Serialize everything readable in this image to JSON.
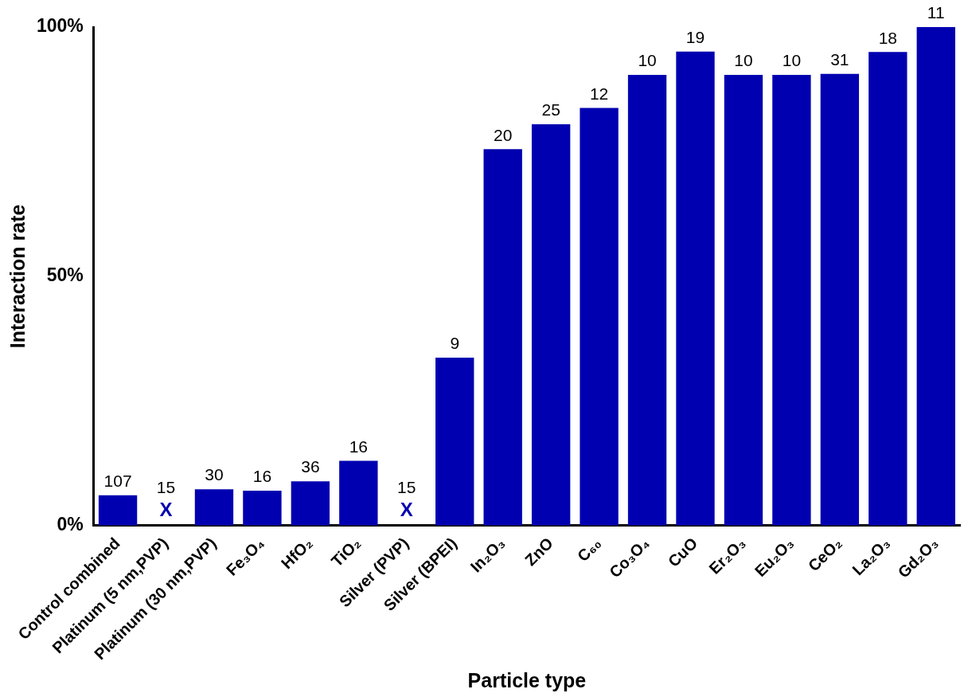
{
  "chart_data": {
    "type": "bar",
    "xlabel": "Particle type",
    "ylabel": "Interaction rate",
    "categories": [
      "Control combined",
      "Platinum (5 nm,PVP)",
      "Platinum (30 nm,PVP)",
      "Fe₃O₄",
      "HfO₂",
      "TiO₂",
      "Silver (PVP)",
      "Silver (BPEI)",
      "In₂O₃",
      "ZnO",
      "C₆₀",
      "Co₃O₄",
      "CuO",
      "Er₂O₃",
      "Eu₂O₃",
      "CeO₂",
      "La₂O₃",
      "Gd₂O₃"
    ],
    "values": [
      6.1,
      0,
      7.3,
      7,
      8.9,
      13,
      0,
      33.7,
      75.5,
      80.5,
      83.8,
      90.4,
      95.1,
      90.4,
      90.4,
      90.6,
      95,
      100
    ],
    "color": "#0000b0",
    "ylim": [
      0,
      100
    ],
    "yticks": [
      {
        "value": 0,
        "label": "0%"
      },
      {
        "value": 50,
        "label": "50%"
      },
      {
        "value": 100,
        "label": "100%"
      }
    ],
    "annotations": [
      {
        "text": "107",
        "x": "Control combined",
        "y": 6.1
      },
      {
        "text": "X",
        "x": "Platinum (5 nm,PVP)",
        "y": 0
      },
      {
        "text": "15",
        "x": "Platinum (5 nm,PVP)",
        "y": 0
      },
      {
        "text": "30",
        "x": "Platinum (30 nm,PVP)",
        "y": 7.3
      },
      {
        "text": "16",
        "x": "Fe₃O₄",
        "y": 7
      },
      {
        "text": "36",
        "x": "HfO₂",
        "y": 8.9
      },
      {
        "text": "16",
        "x": "TiO₂",
        "y": 13
      },
      {
        "text": "X",
        "x": "Silver (PVP)",
        "y": 0
      },
      {
        "text": "15",
        "x": "Silver (PVP)",
        "y": 0
      },
      {
        "text": "9",
        "x": "Silver (BPEI)",
        "y": 33.7
      },
      {
        "text": "20",
        "x": "In₂O₃",
        "y": 75.5
      },
      {
        "text": "25",
        "x": "ZnO",
        "y": 80.5
      },
      {
        "text": "12",
        "x": "C₆₀",
        "y": 83.8
      },
      {
        "text": "10",
        "x": "Co₃O₄",
        "y": 90.4
      },
      {
        "text": "19",
        "x": "CuO",
        "y": 95.1
      },
      {
        "text": "10",
        "x": "Er₂O₃",
        "y": 90.4
      },
      {
        "text": "10",
        "x": "Eu₂O₃",
        "y": 90.4
      },
      {
        "text": "31",
        "x": "CeO₂",
        "y": 90.6
      },
      {
        "text": "18",
        "x": "La₂O₃",
        "y": 95
      },
      {
        "text": "11",
        "x": "Gd₂O₃",
        "y": 100
      }
    ],
    "grid": false,
    "legend": false
  }
}
